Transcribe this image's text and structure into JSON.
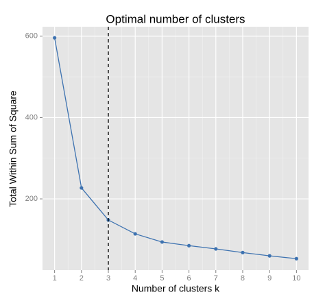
{
  "chart_data": {
    "type": "line",
    "title": "Optimal number of clusters",
    "x_label": "Number of clusters k",
    "y_label": "Total Within Sum of Square",
    "x": [
      1,
      2,
      3,
      4,
      5,
      6,
      7,
      8,
      9,
      10
    ],
    "values": [
      596,
      227,
      148,
      114,
      94,
      85,
      77,
      68,
      60,
      53
    ],
    "color": "#3d72b0",
    "xlim": [
      0.55,
      10.45
    ],
    "xticks": [
      1,
      2,
      3,
      4,
      5,
      6,
      7,
      8,
      9,
      10
    ],
    "ylim": [
      24.8,
      623.2
    ],
    "yticks": [
      200,
      400,
      600
    ],
    "vline": 3,
    "grid": true
  }
}
